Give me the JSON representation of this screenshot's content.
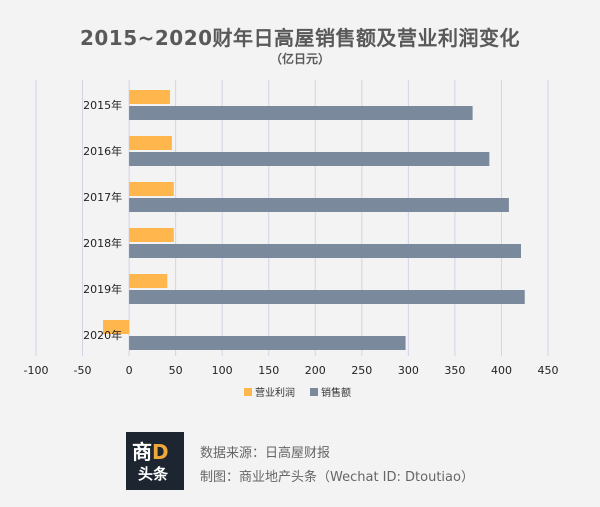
{
  "chart_data": {
    "type": "bar",
    "orientation": "horizontal",
    "title": "2015~2020财年日高屋销售额及营业利润变化",
    "subtitle": "（亿日元）",
    "categories": [
      "2015年",
      "2016年",
      "2017年",
      "2018年",
      "2019年",
      "2020年"
    ],
    "series": [
      {
        "name": "营业利润",
        "color": "#ffb74d",
        "values": [
          44,
          46,
          48,
          48,
          41,
          -28
        ]
      },
      {
        "name": "销售额",
        "color": "#7a8a9c",
        "values": [
          369,
          387,
          408,
          421,
          425,
          297
        ]
      }
    ],
    "x_ticks": [
      "-100",
      "-50",
      "0",
      "50",
      "100",
      "150",
      "200",
      "250",
      "300",
      "350",
      "400",
      "450"
    ],
    "xlim": [
      -100,
      450
    ],
    "grid": "vertical",
    "legend": "bottom"
  },
  "footer": {
    "logo_line1_a": "商",
    "logo_line1_b": "D",
    "logo_line2": "头条",
    "source": "数据来源：日高屋财报",
    "credit": "制图：商业地产头条（Wechat ID: Dtoutiao）"
  }
}
